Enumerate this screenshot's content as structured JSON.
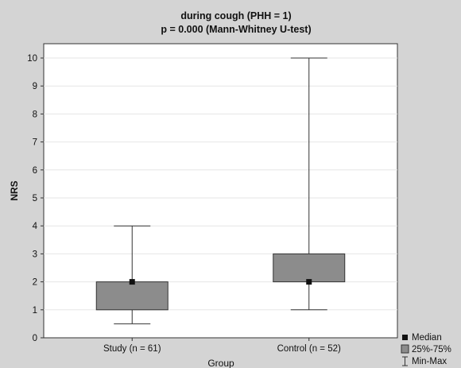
{
  "chart_data": {
    "type": "boxplot",
    "title": "during cough (PHH = 1)",
    "subtitle": "p = 0.000 (Mann-Whitney U-test)",
    "xlabel": "Group",
    "ylabel": "NRS",
    "ylim": [
      0,
      10
    ],
    "yticks": [
      0,
      1,
      2,
      3,
      4,
      5,
      6,
      7,
      8,
      9,
      10
    ],
    "grid": true,
    "legend_position": "bottom-right",
    "categories": [
      "Study (n = 61)",
      "Control (n = 52)"
    ],
    "boxes": [
      {
        "category": "Study (n = 61)",
        "min": 0.5,
        "q1": 1,
        "median": 2,
        "q3": 2,
        "max": 4
      },
      {
        "category": "Control (n = 52)",
        "min": 1,
        "q1": 2,
        "median": 2,
        "q3": 3,
        "max": 10
      }
    ],
    "legend": {
      "median": "Median",
      "iqr": "25%-75%",
      "range": "Min-Max"
    },
    "colors": {
      "background": "#d4d4d4",
      "plot_background": "#ffffff",
      "box_fill": "#8c8c8c",
      "line": "#333333",
      "grid": "#e6e6e6",
      "median_marker": "#111111"
    }
  }
}
